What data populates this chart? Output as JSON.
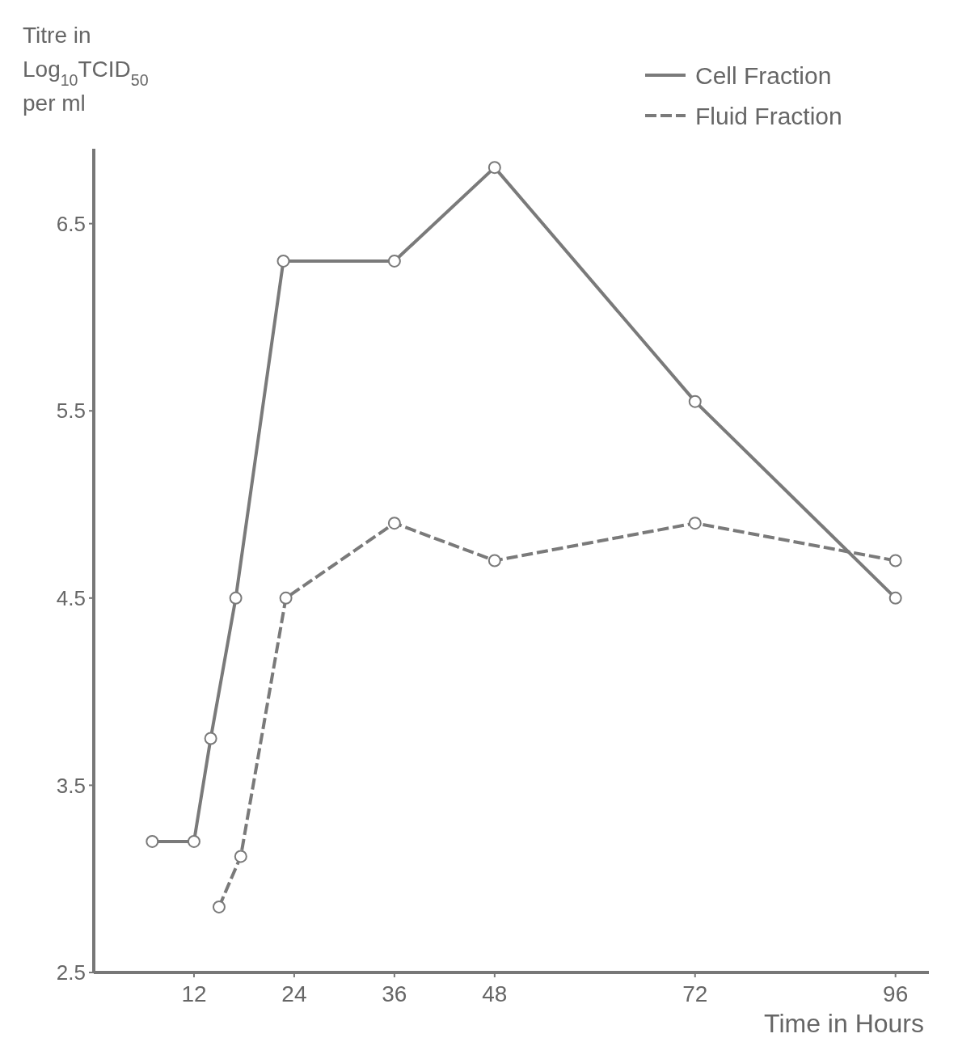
{
  "chart_data": {
    "type": "line",
    "xlabel": "Time in Hours",
    "ylabel": "Titre in Log$_{10}$TCID$_{50}$ per ml",
    "xlim": [
      0,
      100
    ],
    "xticks": [
      12,
      24,
      36,
      48,
      72,
      96
    ],
    "ylim": [
      2.5,
      6.9
    ],
    "yticks": [
      2.5,
      3.5,
      4.5,
      5.5,
      6.5
    ],
    "legend": "top right",
    "marker": "circle",
    "grid": false,
    "series": [
      {
        "name": "Cell Fraction",
        "color": "#7a7a7a",
        "line_style": "solid",
        "x": [
          7,
          12,
          14,
          17,
          22.7,
          36,
          48,
          72,
          96
        ],
        "values": [
          3.2,
          3.2,
          3.75,
          4.5,
          6.3,
          6.3,
          6.8,
          5.55,
          4.5
        ]
      },
      {
        "name": "Fluid Fraction",
        "color": "#7a7a7a",
        "line_style": "dashed",
        "x": [
          15,
          17.6,
          23,
          36,
          48,
          72,
          96
        ],
        "values": [
          2.85,
          3.12,
          4.5,
          4.9,
          4.7,
          4.9,
          4.7
        ]
      }
    ]
  }
}
